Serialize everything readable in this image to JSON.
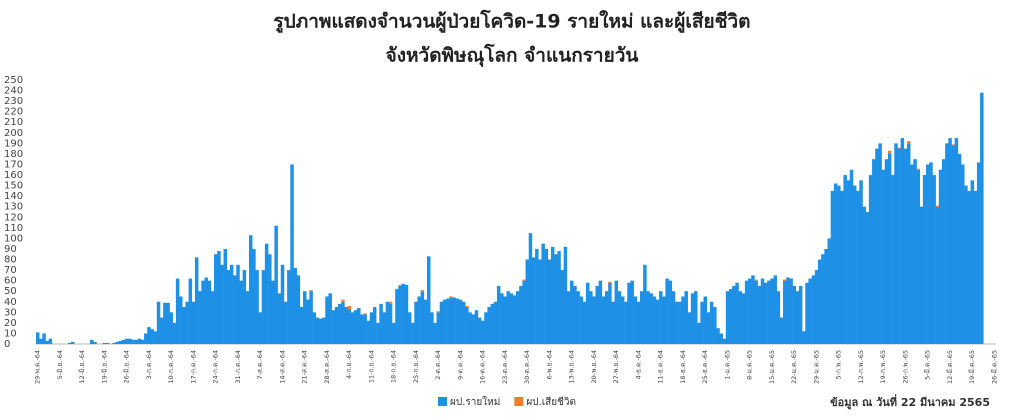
{
  "chart_data": {
    "type": "bar",
    "title": "รูปภาพแสดงจำนวนผู้ป่วยโควิด-19 รายใหม่ และผู้เสียชีวิต",
    "subtitle": "จังหวัดพิษณุโลก จำแนกรายวัน",
    "note": "ข้อมูล ณ วันที่ 22 มีนาคม 2565",
    "stacked": true,
    "categories": [
      "29-พ.ค.-64",
      null,
      null,
      null,
      null,
      null,
      null,
      "5-มิ.ย.-64",
      null,
      null,
      null,
      null,
      null,
      null,
      "12-มิ.ย.-64",
      null,
      null,
      null,
      null,
      null,
      null,
      "19-มิ.ย.-64",
      null,
      null,
      null,
      null,
      null,
      null,
      "26-มิ.ย.-64",
      null,
      null,
      null,
      null,
      null,
      null,
      "3-ก.ค.-64",
      null,
      null,
      null,
      null,
      null,
      null,
      "10-ก.ค.-64",
      null,
      null,
      null,
      null,
      null,
      null,
      "17-ก.ค.-64",
      null,
      null,
      null,
      null,
      null,
      null,
      "24-ก.ค.-64",
      null,
      null,
      null,
      null,
      null,
      null,
      "31-ก.ค.-64",
      null,
      null,
      null,
      null,
      null,
      null,
      "7-ส.ค.-64",
      null,
      null,
      null,
      null,
      null,
      null,
      "14-ส.ค.-64",
      null,
      null,
      null,
      null,
      null,
      null,
      "21-ส.ค.-64",
      null,
      null,
      null,
      null,
      null,
      null,
      "28-ส.ค.-64",
      null,
      null,
      null,
      null,
      null,
      null,
      "4-ก.ย.-64",
      null,
      null,
      null,
      null,
      null,
      null,
      "11-ก.ย.-64",
      null,
      null,
      null,
      null,
      null,
      null,
      "18-ก.ย.-64",
      null,
      null,
      null,
      null,
      null,
      null,
      "25-ก.ย.-64",
      null,
      null,
      null,
      null,
      null,
      null,
      "2-ต.ค.-64",
      null,
      null,
      null,
      null,
      null,
      null,
      "9-ต.ค.-64",
      null,
      null,
      null,
      null,
      null,
      null,
      "16-ต.ค.-64",
      null,
      null,
      null,
      null,
      null,
      null,
      "23-ต.ค.-64",
      null,
      null,
      null,
      null,
      null,
      null,
      "30-ต.ค.-64",
      null,
      null,
      null,
      null,
      null,
      null,
      "6-พ.ย.-64",
      null,
      null,
      null,
      null,
      null,
      null,
      "13-พ.ย.-64",
      null,
      null,
      null,
      null,
      null,
      null,
      "20-พ.ย.-64",
      null,
      null,
      null,
      null,
      null,
      null,
      "27-พ.ย.-64",
      null,
      null,
      null,
      null,
      null,
      null,
      "4-ธ.ค.-64",
      null,
      null,
      null,
      null,
      null,
      null,
      "11-ธ.ค.-64",
      null,
      null,
      null,
      null,
      null,
      null,
      "18-ธ.ค.-64",
      null,
      null,
      null,
      null,
      null,
      null,
      "25-ธ.ค.-64",
      null,
      null,
      null,
      null,
      null,
      null,
      "1-ม.ค.-65",
      null,
      null,
      null,
      null,
      null,
      null,
      "8-ม.ค.-65",
      null,
      null,
      null,
      null,
      null,
      null,
      "15-ม.ค.-65",
      null,
      null,
      null,
      null,
      null,
      null,
      "22-ม.ค.-65",
      null,
      null,
      null,
      null,
      null,
      null,
      "29-ม.ค.-65",
      null,
      null,
      null,
      null,
      null,
      null,
      "5-ก.พ.-65",
      null,
      null,
      null,
      null,
      null,
      null,
      "12-ก.พ.-65",
      null,
      null,
      null,
      null,
      null,
      null,
      "19-ก.พ.-65",
      null,
      null,
      null,
      null,
      null,
      null,
      "26-ก.พ.-65",
      null,
      null,
      null,
      null,
      null,
      null,
      "5-มี.ค.-65",
      null,
      null,
      null,
      null,
      null,
      null,
      "12-มี.ค.-65",
      null,
      null,
      null,
      null,
      null,
      null,
      "19-มี.ค.-65",
      null,
      null,
      null,
      null,
      null,
      null,
      "26-มี.ค.-65"
    ],
    "series": [
      {
        "name": "ผป.รายใหม่",
        "color": "#1e90e6",
        "values": [
          11,
          5,
          10,
          3,
          5,
          0,
          0,
          0,
          0,
          0,
          1,
          2,
          0,
          0,
          0,
          0,
          0,
          4,
          2,
          0,
          0,
          1,
          1,
          0,
          1,
          2,
          3,
          4,
          5,
          5,
          4,
          4,
          5,
          4,
          10,
          16,
          14,
          12,
          40,
          25,
          39,
          39,
          30,
          20,
          62,
          45,
          35,
          40,
          62,
          40,
          82,
          50,
          60,
          63,
          60,
          50,
          85,
          88,
          75,
          90,
          70,
          75,
          65,
          75,
          60,
          70,
          50,
          103,
          90,
          70,
          30,
          70,
          95,
          85,
          60,
          112,
          48,
          75,
          40,
          70,
          170,
          72,
          65,
          35,
          50,
          42,
          50,
          30,
          25,
          24,
          25,
          45,
          48,
          32,
          35,
          38,
          40,
          35,
          33,
          30,
          32,
          34,
          28,
          28,
          22,
          30,
          35,
          20,
          38,
          30,
          40,
          38,
          20,
          52,
          55,
          57,
          56,
          30,
          20,
          40,
          45,
          50,
          42,
          83,
          30,
          20,
          30,
          40,
          42,
          43,
          44,
          44,
          43,
          42,
          40,
          35,
          30,
          28,
          32,
          25,
          22,
          30,
          35,
          38,
          40,
          55,
          48,
          45,
          50,
          48,
          46,
          50,
          55,
          60,
          80,
          105,
          82,
          90,
          80,
          95,
          90,
          80,
          92,
          85,
          88,
          70,
          92,
          50,
          60,
          55,
          50,
          45,
          40,
          58,
          50,
          45,
          55,
          60,
          45,
          50,
          58,
          40,
          60,
          50,
          45,
          40,
          58,
          60,
          45,
          40,
          50,
          75,
          50,
          48,
          45,
          42,
          50,
          45,
          62,
          60,
          50,
          40,
          40,
          45,
          50,
          30,
          48,
          50,
          20,
          40,
          45,
          30,
          40,
          35,
          15,
          10,
          5,
          50,
          52,
          55,
          58,
          50,
          48,
          60,
          62,
          65,
          60,
          55,
          62,
          58,
          60,
          62,
          65,
          50,
          25,
          60,
          63,
          62,
          55,
          50,
          55,
          12,
          58,
          62,
          65,
          70,
          80,
          85,
          90,
          100,
          145,
          152,
          150,
          145,
          160,
          155,
          165,
          150,
          145,
          155,
          130,
          125,
          160,
          175,
          185,
          190,
          165,
          175,
          180,
          160,
          190,
          185,
          195,
          185,
          190,
          170,
          175,
          165,
          130,
          160,
          170,
          172,
          160,
          130,
          165,
          175,
          190,
          195,
          188,
          195,
          180,
          170,
          150,
          145,
          155,
          145,
          172,
          238,
          null,
          null,
          null,
          null
        ]
      },
      {
        "name": "ผป.เสียชีวิต",
        "color": "#ed7d31",
        "values": [
          0,
          0,
          0,
          0,
          0,
          0,
          0,
          0,
          0,
          0,
          0,
          0,
          0,
          0,
          0,
          0,
          0,
          0,
          0,
          0,
          0,
          0,
          0,
          0,
          0,
          0,
          0,
          0,
          0,
          0,
          0,
          0,
          0,
          0,
          0,
          0,
          0,
          0,
          0,
          0,
          0,
          0,
          0,
          0,
          0,
          0,
          0,
          0,
          0,
          0,
          0,
          0,
          0,
          0,
          0,
          0,
          0,
          0,
          0,
          0,
          0,
          0,
          0,
          0,
          0,
          0,
          0,
          0,
          0,
          0,
          0,
          0,
          0,
          0,
          0,
          0,
          0,
          0,
          0,
          0,
          0,
          0,
          0,
          0,
          0,
          0,
          1,
          0,
          0,
          0,
          0,
          0,
          0,
          0,
          0,
          0,
          2,
          0,
          3,
          0,
          0,
          0,
          0,
          1,
          0,
          0,
          0,
          0,
          0,
          0,
          0,
          2,
          0,
          0,
          1,
          0,
          0,
          0,
          0,
          0,
          0,
          1,
          0,
          0,
          0,
          0,
          1,
          0,
          0,
          0,
          1,
          0,
          0,
          0,
          0,
          1,
          0,
          0,
          0,
          0,
          0,
          0,
          0,
          0,
          0,
          0,
          0,
          0,
          0,
          0,
          0,
          0,
          0,
          1,
          0,
          0,
          0,
          0,
          0,
          0,
          0,
          0,
          0,
          0,
          0,
          0,
          0,
          0,
          0,
          0,
          0,
          0,
          0,
          0,
          0,
          0,
          0,
          0,
          0,
          0,
          1,
          0,
          0,
          0,
          0,
          0,
          0,
          0,
          0,
          0,
          0,
          0,
          0,
          0,
          0,
          0,
          0,
          0,
          0,
          0,
          0,
          0,
          0,
          0,
          0,
          0,
          0,
          0,
          0,
          0,
          0,
          0,
          0,
          0,
          0,
          0,
          0,
          0,
          0,
          0,
          0,
          0,
          0,
          0,
          0,
          0,
          1,
          0,
          0,
          0,
          0,
          0,
          0,
          0,
          0,
          1,
          0,
          0,
          0,
          0,
          0,
          0,
          0,
          0,
          0,
          0,
          0,
          0,
          0,
          0,
          0,
          0,
          0,
          0,
          0,
          0,
          0,
          0,
          0,
          0,
          0,
          0,
          0,
          0,
          0,
          0,
          0,
          0,
          3,
          0,
          0,
          1,
          0,
          0,
          2,
          0,
          0,
          1,
          0,
          0,
          0,
          0,
          0,
          1,
          0,
          0,
          0,
          0,
          1,
          0,
          0,
          0,
          0,
          0,
          0,
          0,
          0,
          0,
          null,
          null,
          null,
          null
        ]
      }
    ],
    "ylim": [
      0,
      250
    ],
    "yticks": [
      0,
      10,
      20,
      30,
      40,
      50,
      60,
      70,
      80,
      90,
      100,
      110,
      120,
      130,
      140,
      150,
      160,
      170,
      180,
      190,
      200,
      210,
      220,
      230,
      240,
      250
    ],
    "grid": false,
    "legend": "bottom"
  }
}
